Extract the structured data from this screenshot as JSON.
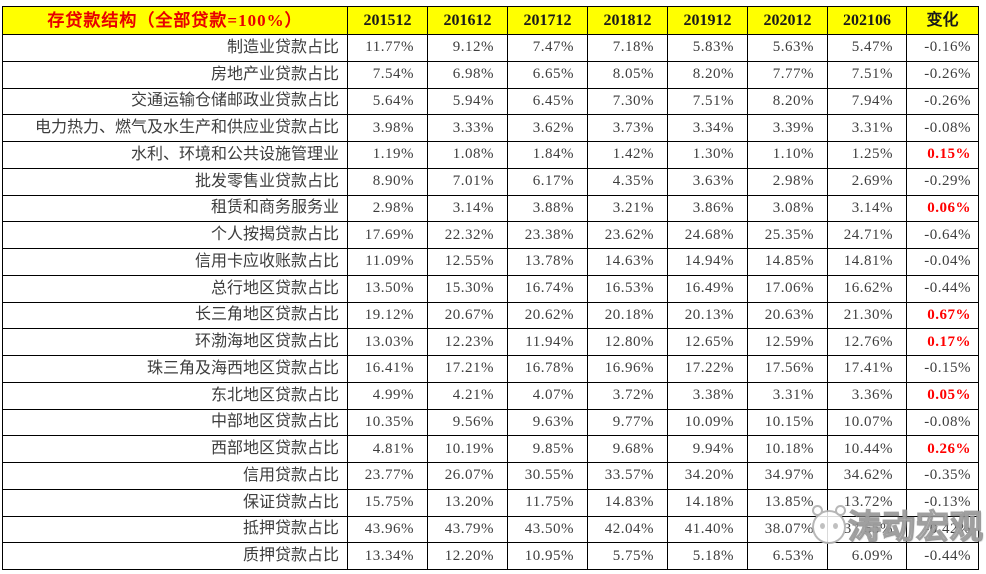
{
  "chart_data": {
    "type": "table",
    "title": "存贷款结构（全部贷款=100%）",
    "columns": [
      "201512",
      "201612",
      "201712",
      "201812",
      "201912",
      "202012",
      "202106",
      "变化"
    ],
    "rows": [
      {
        "label": "制造业贷款占比",
        "values": [
          "11.77%",
          "9.12%",
          "7.47%",
          "7.18%",
          "5.83%",
          "5.63%",
          "5.47%"
        ],
        "change": "-0.16%",
        "change_up": false
      },
      {
        "label": "房地产业贷款占比",
        "values": [
          "7.54%",
          "6.98%",
          "6.65%",
          "8.05%",
          "8.20%",
          "7.77%",
          "7.51%"
        ],
        "change": "-0.26%",
        "change_up": false
      },
      {
        "label": "交通运输仓储邮政业贷款占比",
        "values": [
          "5.64%",
          "5.94%",
          "6.45%",
          "7.30%",
          "7.51%",
          "8.20%",
          "7.94%"
        ],
        "change": "-0.26%",
        "change_up": false
      },
      {
        "label": "电力热力、燃气及水生产和供应业贷款占比",
        "values": [
          "3.98%",
          "3.33%",
          "3.62%",
          "3.73%",
          "3.34%",
          "3.39%",
          "3.31%"
        ],
        "change": "-0.08%",
        "change_up": false
      },
      {
        "label": "水利、环境和公共设施管理业",
        "values": [
          "1.19%",
          "1.08%",
          "1.84%",
          "1.42%",
          "1.30%",
          "1.10%",
          "1.25%"
        ],
        "change": "0.15%",
        "change_up": true
      },
      {
        "label": "批发零售业贷款占比",
        "values": [
          "8.90%",
          "7.01%",
          "6.17%",
          "4.35%",
          "3.63%",
          "2.98%",
          "2.69%"
        ],
        "change": "-0.29%",
        "change_up": false
      },
      {
        "label": "租赁和商务服务业",
        "values": [
          "2.98%",
          "3.14%",
          "3.88%",
          "3.21%",
          "3.86%",
          "3.08%",
          "3.14%"
        ],
        "change": "0.06%",
        "change_up": true
      },
      {
        "label": "个人按揭贷款占比",
        "values": [
          "17.69%",
          "22.32%",
          "23.38%",
          "23.62%",
          "24.68%",
          "25.35%",
          "24.71%"
        ],
        "change": "-0.64%",
        "change_up": false
      },
      {
        "label": "信用卡应收账款占比",
        "values": [
          "11.09%",
          "12.55%",
          "13.78%",
          "14.63%",
          "14.94%",
          "14.85%",
          "14.81%"
        ],
        "change": "-0.04%",
        "change_up": false
      },
      {
        "label": "总行地区贷款占比",
        "values": [
          "13.50%",
          "15.30%",
          "16.74%",
          "16.53%",
          "16.49%",
          "17.06%",
          "16.62%"
        ],
        "change": "-0.44%",
        "change_up": false
      },
      {
        "label": "长三角地区贷款占比",
        "values": [
          "19.12%",
          "20.67%",
          "20.62%",
          "20.18%",
          "20.13%",
          "20.63%",
          "21.30%"
        ],
        "change": "0.67%",
        "change_up": true
      },
      {
        "label": "环渤海地区贷款占比",
        "values": [
          "13.03%",
          "12.23%",
          "11.94%",
          "12.80%",
          "12.65%",
          "12.59%",
          "12.76%"
        ],
        "change": "0.17%",
        "change_up": true
      },
      {
        "label": "珠三角及海西地区贷款占比",
        "values": [
          "16.41%",
          "17.21%",
          "16.78%",
          "16.96%",
          "17.22%",
          "17.56%",
          "17.41%"
        ],
        "change": "-0.15%",
        "change_up": false
      },
      {
        "label": "东北地区贷款占比",
        "values": [
          "4.99%",
          "4.21%",
          "4.07%",
          "3.72%",
          "3.38%",
          "3.31%",
          "3.36%"
        ],
        "change": "0.05%",
        "change_up": true
      },
      {
        "label": "中部地区贷款占比",
        "values": [
          "10.35%",
          "9.56%",
          "9.63%",
          "9.77%",
          "10.09%",
          "10.15%",
          "10.07%"
        ],
        "change": "-0.08%",
        "change_up": false
      },
      {
        "label": "西部地区贷款占比",
        "values": [
          "4.81%",
          "10.19%",
          "9.85%",
          "9.68%",
          "9.94%",
          "10.18%",
          "10.44%"
        ],
        "change": "0.26%",
        "change_up": true
      },
      {
        "label": "信用贷款占比",
        "values": [
          "23.77%",
          "26.07%",
          "30.55%",
          "33.57%",
          "34.20%",
          "34.97%",
          "34.62%"
        ],
        "change": "-0.35%",
        "change_up": false
      },
      {
        "label": "保证贷款占比",
        "values": [
          "15.75%",
          "13.20%",
          "11.75%",
          "14.83%",
          "14.18%",
          "13.85%",
          "13.72%"
        ],
        "change": "-0.13%",
        "change_up": false
      },
      {
        "label": "抵押贷款占比",
        "values": [
          "43.96%",
          "43.79%",
          "43.50%",
          "42.04%",
          "41.40%",
          "38.07%",
          "37.65%"
        ],
        "change": "-0.42%",
        "change_up": false
      },
      {
        "label": "质押贷款占比",
        "values": [
          "13.34%",
          "12.20%",
          "10.95%",
          "5.75%",
          "5.18%",
          "6.53%",
          "6.09%"
        ],
        "change": "-0.44%",
        "change_up": false
      }
    ],
    "layout_hints": {
      "header_background": "#ffff00",
      "title_color": "#e80000",
      "positive_change_color": "#ff0000",
      "body_text_color": "#3d3d3d",
      "border_color": "#000000",
      "grid": true
    }
  },
  "watermark": {
    "text": "涛动宏观"
  }
}
